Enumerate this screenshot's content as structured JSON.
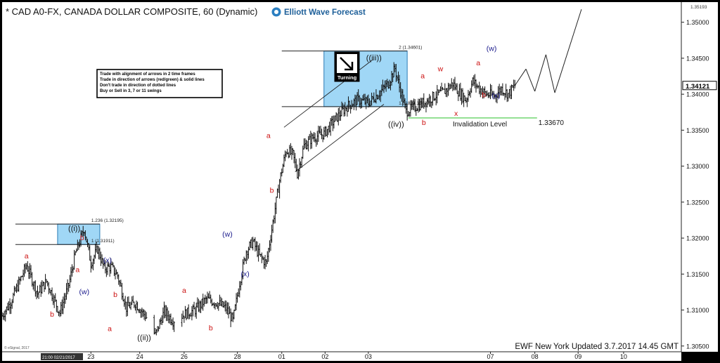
{
  "header": {
    "title": "* CAD A0-FX, CANADA DOLLAR COMPOSITE, 60 (Dynamic)",
    "logo_text": "Elliott Wave Forecast"
  },
  "instructions": [
    "Trade with alignment of arrows in 2 time frames",
    "Trade in direction of arrows (red/green) & solid lines",
    "Don't trade in direction of dotted lines",
    "Buy or Sell in 3, 7 or 11 swings"
  ],
  "turning_label": "Turning",
  "footer": {
    "updated": "EWF New York Updated 3.7.2017 14.45 GMT",
    "copyright": "© eSignal, 2017",
    "cursor_time": "21:00 02/21/2017"
  },
  "colors": {
    "bg": "#000000",
    "chart_bg": "#ffffff",
    "bars": "#111111",
    "red_label": "#cc1111",
    "blue_label": "#1a1a8c",
    "box_fill": "#8fd0f5",
    "invalidation": "#7bd87b"
  },
  "chart_data": {
    "type": "ohlc",
    "y_axis": {
      "ylim": [
        1.3042,
        1.3528
      ],
      "ticks": [
        "1.35000",
        "1.34500",
        "1.34000",
        "1.33500",
        "1.33000",
        "1.32500",
        "1.32000",
        "1.31500",
        "1.31000",
        "1.30500"
      ],
      "tick_values": [
        1.35,
        1.345,
        1.34,
        1.335,
        1.33,
        1.325,
        1.32,
        1.315,
        1.31,
        1.305
      ],
      "top_label": "1.35193",
      "current_price": "1.34121"
    },
    "x_axis": {
      "ticks": [
        {
          "label": "23",
          "bar": 80
        },
        {
          "label": "24",
          "bar": 124
        },
        {
          "label": "26",
          "bar": 164
        },
        {
          "label": "28",
          "bar": 212
        },
        {
          "label": "01",
          "bar": 252
        },
        {
          "label": "02",
          "bar": 291
        },
        {
          "label": "03",
          "bar": 330
        },
        {
          "label": "07",
          "bar": 440
        },
        {
          "label": "08",
          "bar": 480
        },
        {
          "label": "09",
          "bar": 519
        },
        {
          "label": "10",
          "bar": 560
        }
      ],
      "xlim": [
        0,
        612
      ]
    },
    "price_path": [
      [
        0,
        1.3092
      ],
      [
        8,
        1.3112
      ],
      [
        22,
        1.3162
      ],
      [
        32,
        1.3123
      ],
      [
        40,
        1.314
      ],
      [
        52,
        1.3096
      ],
      [
        60,
        1.3135
      ],
      [
        66,
        1.3178
      ],
      [
        74,
        1.3213
      ],
      [
        80,
        1.3165
      ],
      [
        86,
        1.3185
      ],
      [
        92,
        1.3158
      ],
      [
        98,
        1.316
      ],
      [
        104,
        1.3148
      ],
      [
        112,
        1.3103
      ],
      [
        120,
        1.311
      ],
      [
        130,
        1.309
      ],
      [
        138,
        1.3065
      ],
      [
        146,
        1.3098
      ],
      [
        154,
        1.3085
      ],
      [
        164,
        1.3094
      ],
      [
        174,
        1.31
      ],
      [
        184,
        1.3115
      ],
      [
        194,
        1.311
      ],
      [
        202,
        1.3102
      ],
      [
        208,
        1.3085
      ],
      [
        214,
        1.3138
      ],
      [
        220,
        1.3182
      ],
      [
        226,
        1.3195
      ],
      [
        232,
        1.3175
      ],
      [
        238,
        1.3165
      ],
      [
        244,
        1.3222
      ],
      [
        250,
        1.328
      ],
      [
        256,
        1.3322
      ],
      [
        262,
        1.3316
      ],
      [
        266,
        1.329
      ],
      [
        272,
        1.3328
      ],
      [
        280,
        1.334
      ],
      [
        290,
        1.3345
      ],
      [
        300,
        1.3365
      ],
      [
        310,
        1.3382
      ],
      [
        320,
        1.3392
      ],
      [
        330,
        1.3388
      ],
      [
        340,
        1.3402
      ],
      [
        348,
        1.3415
      ],
      [
        354,
        1.3436
      ],
      [
        358,
        1.341
      ],
      [
        364,
        1.3376
      ],
      [
        372,
        1.3382
      ],
      [
        382,
        1.339
      ],
      [
        390,
        1.3398
      ],
      [
        398,
        1.3403
      ],
      [
        406,
        1.3415
      ],
      [
        412,
        1.3402
      ],
      [
        418,
        1.3392
      ],
      [
        424,
        1.3418
      ],
      [
        430,
        1.3408
      ],
      [
        436,
        1.34
      ],
      [
        444,
        1.3398
      ],
      [
        450,
        1.3408
      ],
      [
        456,
        1.34
      ],
      [
        462,
        1.3412
      ]
    ],
    "projection_path": [
      [
        462,
        1.3412
      ],
      [
        472,
        1.3435
      ],
      [
        480,
        1.3404
      ],
      [
        490,
        1.3455
      ],
      [
        498,
        1.3402
      ],
      [
        522,
        1.3518
      ]
    ],
    "wave_labels": [
      {
        "text": "a",
        "bar": 22,
        "price": 1.3172,
        "color": "red"
      },
      {
        "text": "b",
        "bar": 45,
        "price": 1.3091,
        "color": "red"
      },
      {
        "text": "((i))",
        "bar": 65,
        "price": 1.321,
        "color": "black"
      },
      {
        "text": "b",
        "bar": 72,
        "price": 1.3197,
        "color": "red"
      },
      {
        "text": "a",
        "bar": 68,
        "price": 1.3153,
        "color": "red"
      },
      {
        "text": "(w)",
        "bar": 74,
        "price": 1.3122,
        "color": "blue"
      },
      {
        "text": "(x)",
        "bar": 95,
        "price": 1.3166,
        "color": "blue"
      },
      {
        "text": "b",
        "bar": 102,
        "price": 1.3118,
        "color": "red"
      },
      {
        "text": "a",
        "bar": 97,
        "price": 1.3071,
        "color": "red"
      },
      {
        "text": "((ii))",
        "bar": 128,
        "price": 1.3058,
        "color": "black"
      },
      {
        "text": "a",
        "bar": 164,
        "price": 1.3124,
        "color": "red"
      },
      {
        "text": "b",
        "bar": 188,
        "price": 1.3072,
        "color": "red"
      },
      {
        "text": "(w)",
        "bar": 203,
        "price": 1.3202,
        "color": "blue"
      },
      {
        "text": "(x)",
        "bar": 219,
        "price": 1.3147,
        "color": "blue"
      },
      {
        "text": "a",
        "bar": 240,
        "price": 1.3339,
        "color": "red"
      },
      {
        "text": "b",
        "bar": 243,
        "price": 1.3263,
        "color": "red"
      },
      {
        "text": "((iii))",
        "bar": 335,
        "price": 1.3447,
        "color": "black"
      },
      {
        "text": "((iv))",
        "bar": 355,
        "price": 1.3355,
        "color": "black"
      },
      {
        "text": "a",
        "bar": 379,
        "price": 1.3422,
        "color": "red"
      },
      {
        "text": "b",
        "bar": 380,
        "price": 1.3357,
        "color": "red"
      },
      {
        "text": "w",
        "bar": 395,
        "price": 1.3432,
        "color": "red"
      },
      {
        "text": "x",
        "bar": 409,
        "price": 1.337,
        "color": "red"
      },
      {
        "text": "a",
        "bar": 429,
        "price": 1.344,
        "color": "red"
      },
      {
        "text": "b",
        "bar": 434,
        "price": 1.3396,
        "color": "red"
      },
      {
        "text": "(w)",
        "bar": 441,
        "price": 1.346,
        "color": "blue"
      },
      {
        "text": "(x)",
        "bar": 445,
        "price": 1.3395,
        "color": "blue"
      }
    ],
    "fib_boxes": [
      {
        "start_bar": 50,
        "end_bar": 88,
        "top": 1.32195,
        "bottom": 1.31911,
        "top_label": "1.236 (1.32195)",
        "bottom_label": "1 (1.31911)"
      },
      {
        "start_bar": 290,
        "end_bar": 365,
        "top": 1.34601,
        "bottom": 1.33827,
        "top_label": "2 (1.34601)",
        "bottom_label": "1.618 (1.33827)"
      }
    ],
    "channel": {
      "upper": [
        [
          254,
          1.3354
        ],
        [
          334,
          1.3448
        ]
      ],
      "lower": [
        [
          264,
          1.3292
        ],
        [
          344,
          1.3386
        ]
      ]
    },
    "invalidation": {
      "price": 1.3367,
      "start_bar": 366,
      "end_bar": 482,
      "label": "Invalidation Level",
      "value_label": "1.33670"
    }
  }
}
